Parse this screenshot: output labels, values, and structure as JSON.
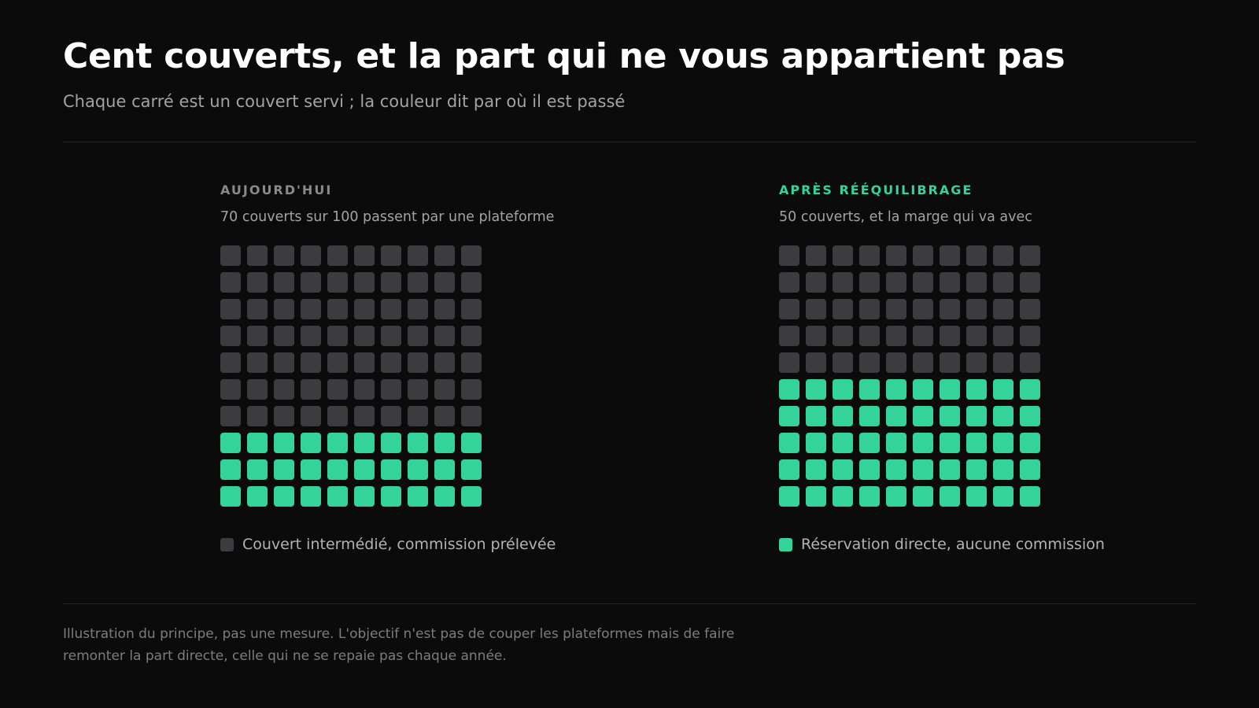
{
  "title": "Cent couverts, et la part qui ne vous appartient pas",
  "subtitle": "Chaque carré est un couvert servi ; la couleur dit par où il est passé",
  "colors": {
    "intermediated": "#3c3c40",
    "direct": "#34d399",
    "heading_neutral": "#8a8a8a",
    "heading_accent": "#34d399"
  },
  "chart_data": [
    {
      "type": "waffle",
      "title": "AUJOURD'HUI",
      "subtitle": "70 couverts sur 100 passent par une plateforme",
      "total": 100,
      "columns": 10,
      "series": [
        {
          "name": "Couvert intermédié, commission prélevée",
          "value": 70,
          "color": "#3c3c40"
        },
        {
          "name": "Réservation directe, aucune commission",
          "value": 30,
          "color": "#34d399"
        }
      ],
      "legend": {
        "label": "Couvert intermédié, commission prélevée",
        "color": "#3c3c40"
      }
    },
    {
      "type": "waffle",
      "title": "APRÈS RÉÉQUILIBRAGE",
      "subtitle": "50 couverts, et la marge qui va avec",
      "total": 100,
      "columns": 10,
      "series": [
        {
          "name": "Couvert intermédié, commission prélevée",
          "value": 50,
          "color": "#3c3c40"
        },
        {
          "name": "Réservation directe, aucune commission",
          "value": 50,
          "color": "#34d399"
        }
      ],
      "legend": {
        "label": "Réservation directe, aucune commission",
        "color": "#34d399"
      }
    }
  ],
  "footnote": "Illustration du principe, pas une mesure. L'objectif n'est pas de couper les plateformes mais de faire remonter la part directe, celle qui ne se repaie pas chaque année."
}
